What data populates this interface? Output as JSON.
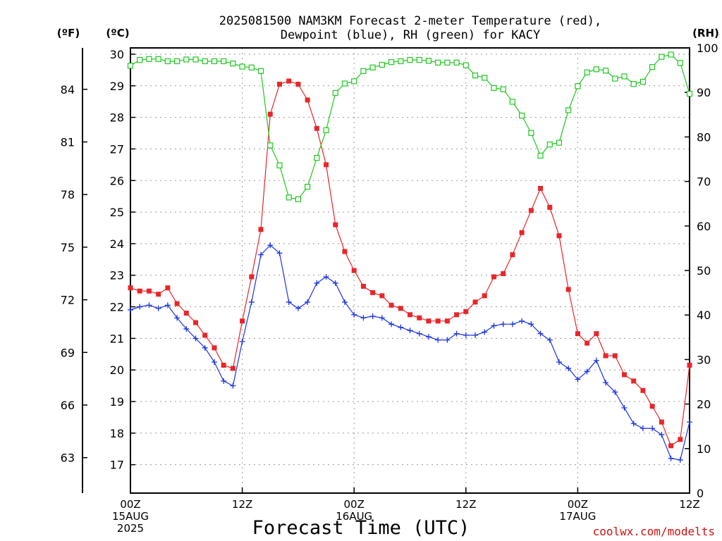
{
  "chart_data": {
    "type": "line",
    "title": [
      "2025081500 NAM3KM Forecast 2-meter Temperature (red),",
      "Dewpoint (blue), RH (green) for KACY"
    ],
    "xlabel": "Forecast Time (UTC)",
    "credit": "coolwx.com/modelts",
    "units": {
      "fahrenheit": "(ºF)",
      "celsius": "(ºC)",
      "rh": "(RH)"
    },
    "x_ticks": [
      {
        "hour": 0,
        "lines": [
          "00Z",
          "15AUG",
          "2025"
        ]
      },
      {
        "hour": 12,
        "lines": [
          "12Z"
        ]
      },
      {
        "hour": 24,
        "lines": [
          "00Z",
          "16AUG"
        ]
      },
      {
        "hour": 36,
        "lines": [
          "12Z"
        ]
      },
      {
        "hour": 48,
        "lines": [
          "00Z",
          "17AUG"
        ]
      },
      {
        "hour": 60,
        "lines": [
          "12Z"
        ]
      }
    ],
    "xlim": [
      0,
      60
    ],
    "ylim_celsius": [
      16.1,
      30.2
    ],
    "y_ticks_celsius": [
      17,
      18,
      19,
      20,
      21,
      22,
      23,
      24,
      25,
      26,
      27,
      28,
      29,
      30
    ],
    "y_ticks_fahrenheit": [
      63,
      66,
      69,
      72,
      75,
      78,
      81,
      84
    ],
    "ylim_rh": [
      0,
      100
    ],
    "y_ticks_rh": [
      0,
      10,
      20,
      30,
      40,
      50,
      60,
      70,
      80,
      90,
      100
    ],
    "grid": true,
    "series": [
      {
        "name": "Temperature",
        "axis": "celsius",
        "color": "#e8262a",
        "marker": "filled-square",
        "x": [
          0,
          1,
          2,
          3,
          4,
          5,
          6,
          7,
          8,
          9,
          10,
          11,
          12,
          13,
          14,
          15,
          16,
          17,
          18,
          19,
          20,
          21,
          22,
          23,
          24,
          25,
          26,
          27,
          28,
          29,
          30,
          31,
          32,
          33,
          34,
          35,
          36,
          37,
          38,
          39,
          40,
          41,
          42,
          43,
          44,
          45,
          46,
          47,
          48,
          49,
          50,
          51,
          52,
          53,
          54,
          55,
          56,
          57,
          58,
          59,
          60
        ],
        "values": [
          22.6,
          22.5,
          22.5,
          22.4,
          22.6,
          22.1,
          21.8,
          21.5,
          21.1,
          20.7,
          20.15,
          20.05,
          21.55,
          22.95,
          24.45,
          28.1,
          29.05,
          29.15,
          29.05,
          28.55,
          27.65,
          26.5,
          24.6,
          23.75,
          23.15,
          22.65,
          22.45,
          22.35,
          22.05,
          21.95,
          21.75,
          21.65,
          21.55,
          21.55,
          21.55,
          21.75,
          21.85,
          22.15,
          22.35,
          22.95,
          23.05,
          23.65,
          24.35,
          25.05,
          25.75,
          25.15,
          24.25,
          22.55,
          21.15,
          20.85,
          21.15,
          20.45,
          20.45,
          19.85,
          19.65,
          19.35,
          18.85,
          18.35,
          17.6,
          17.8,
          20.15
        ]
      },
      {
        "name": "Dewpoint",
        "axis": "celsius",
        "color": "#1c34e0",
        "marker": "plus",
        "x": [
          0,
          1,
          2,
          3,
          4,
          5,
          6,
          7,
          8,
          9,
          10,
          11,
          12,
          13,
          14,
          15,
          16,
          17,
          18,
          19,
          20,
          21,
          22,
          23,
          24,
          25,
          26,
          27,
          28,
          29,
          30,
          31,
          32,
          33,
          34,
          35,
          36,
          37,
          38,
          39,
          40,
          41,
          42,
          43,
          44,
          45,
          46,
          47,
          48,
          49,
          50,
          51,
          52,
          53,
          54,
          55,
          56,
          57,
          58,
          59,
          60
        ],
        "values": [
          21.9,
          22.0,
          22.05,
          21.95,
          22.05,
          21.65,
          21.3,
          21.0,
          20.7,
          20.25,
          19.65,
          19.5,
          20.9,
          22.15,
          23.65,
          23.95,
          23.7,
          22.15,
          21.95,
          22.15,
          22.75,
          22.95,
          22.75,
          22.15,
          21.75,
          21.65,
          21.7,
          21.65,
          21.45,
          21.35,
          21.25,
          21.15,
          21.05,
          20.95,
          20.95,
          21.15,
          21.1,
          21.1,
          21.2,
          21.4,
          21.45,
          21.45,
          21.55,
          21.45,
          21.15,
          20.95,
          20.25,
          20.05,
          19.7,
          19.95,
          20.3,
          19.6,
          19.3,
          18.8,
          18.3,
          18.15,
          18.15,
          17.95,
          17.2,
          17.15,
          18.35
        ]
      },
      {
        "name": "RH",
        "axis": "rh",
        "color": "#1ec81e",
        "marker": "open-square",
        "x": [
          0,
          1,
          2,
          3,
          4,
          5,
          6,
          7,
          8,
          9,
          10,
          11,
          12,
          13,
          14,
          15,
          16,
          17,
          18,
          19,
          20,
          21,
          22,
          23,
          24,
          25,
          26,
          27,
          28,
          29,
          30,
          31,
          32,
          33,
          34,
          35,
          36,
          37,
          38,
          39,
          40,
          41,
          42,
          43,
          44,
          45,
          46,
          47,
          48,
          49,
          50,
          51,
          52,
          53,
          54,
          55,
          56,
          57,
          58,
          59,
          60
        ],
        "values": [
          96.0,
          97.3,
          97.5,
          97.5,
          97.0,
          97.0,
          97.4,
          97.4,
          97.0,
          97.0,
          97.0,
          96.5,
          95.8,
          95.6,
          94.8,
          78.1,
          73.6,
          66.4,
          66.0,
          68.8,
          75.3,
          81.5,
          89.9,
          92.0,
          92.5,
          94.8,
          95.6,
          96.2,
          96.8,
          97.0,
          97.3,
          97.3,
          97.1,
          96.7,
          96.7,
          96.7,
          96.1,
          93.8,
          93.3,
          91.0,
          90.7,
          87.9,
          84.8,
          80.9,
          75.8,
          78.3,
          78.7,
          86.0,
          91.4,
          94.5,
          95.2,
          94.9,
          93.1,
          93.6,
          91.9,
          92.4,
          95.7,
          98.0,
          98.5,
          96.6,
          89.7
        ]
      }
    ]
  }
}
